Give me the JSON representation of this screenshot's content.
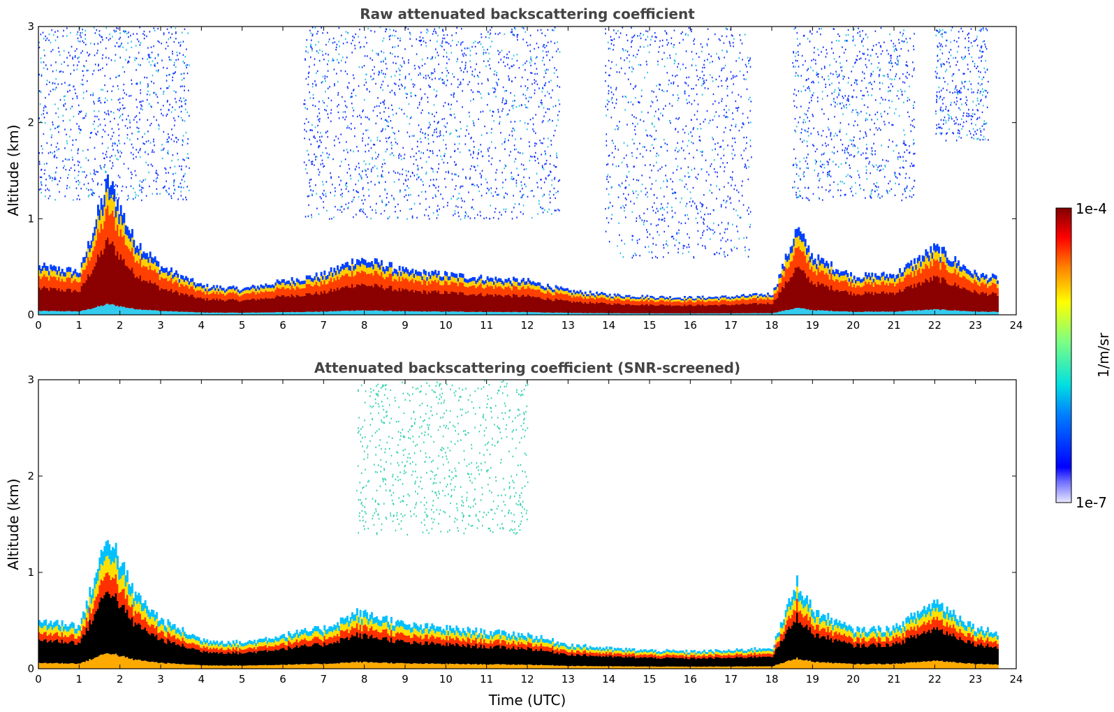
{
  "chart_data": [
    {
      "type": "heatmap",
      "title": "Raw attenuated backscattering coefficient",
      "xlabel": "",
      "ylabel": "Altitude (km)",
      "xlim": [
        0,
        24
      ],
      "ylim": [
        0,
        3
      ],
      "x_ticks": [
        "0",
        "1",
        "2",
        "3",
        "4",
        "5",
        "6",
        "7",
        "8",
        "9",
        "10",
        "11",
        "12",
        "13",
        "14",
        "15",
        "16",
        "17",
        "18",
        "19",
        "20",
        "21",
        "22",
        "23",
        "24"
      ],
      "y_ticks": [
        "0",
        "1",
        "2",
        "3"
      ],
      "data_end_time": 23.55,
      "boundary_layer_top_km": [
        [
          0,
          0.5
        ],
        [
          1,
          0.45
        ],
        [
          1.7,
          1.4
        ],
        [
          2.3,
          0.8
        ],
        [
          3,
          0.5
        ],
        [
          4,
          0.3
        ],
        [
          5,
          0.27
        ],
        [
          6,
          0.35
        ],
        [
          7,
          0.42
        ],
        [
          7.8,
          0.58
        ],
        [
          8.5,
          0.52
        ],
        [
          9,
          0.45
        ],
        [
          10,
          0.42
        ],
        [
          11,
          0.38
        ],
        [
          12,
          0.35
        ],
        [
          13,
          0.25
        ],
        [
          14,
          0.21
        ],
        [
          15,
          0.19
        ],
        [
          16,
          0.18
        ],
        [
          17,
          0.19
        ],
        [
          18,
          0.22
        ],
        [
          18.6,
          0.9
        ],
        [
          19,
          0.6
        ],
        [
          20,
          0.4
        ],
        [
          21,
          0.42
        ],
        [
          22,
          0.7
        ],
        [
          23,
          0.42
        ],
        [
          23.55,
          0.38
        ]
      ],
      "noise_regions": [
        {
          "start": 0,
          "end": 3.7,
          "min_alt_km": 1.2
        },
        {
          "start": 6.5,
          "end": 12.8,
          "min_alt_km": 1.0
        },
        {
          "start": 13.9,
          "end": 17.5,
          "min_alt_km": 0.6
        },
        {
          "start": 18.5,
          "end": 21.5,
          "min_alt_km": 1.2
        },
        {
          "start": 22,
          "end": 23.3,
          "min_alt_km": 1.8
        }
      ]
    },
    {
      "type": "heatmap",
      "title": "Attenuated backscattering coefficient (SNR-screened)",
      "xlabel": "Time (UTC)",
      "ylabel": "Altitude (km)",
      "xlim": [
        0,
        24
      ],
      "ylim": [
        0,
        3
      ],
      "x_ticks": [
        "0",
        "1",
        "2",
        "3",
        "4",
        "5",
        "6",
        "7",
        "8",
        "9",
        "10",
        "11",
        "12",
        "13",
        "14",
        "15",
        "16",
        "17",
        "18",
        "19",
        "20",
        "21",
        "22",
        "23",
        "24"
      ],
      "y_ticks": [
        "0",
        "1",
        "2",
        "3"
      ],
      "data_end_time": 23.55,
      "noise_regions": [
        {
          "start": 7.8,
          "end": 12.0,
          "min_alt_km": 1.4
        }
      ]
    }
  ],
  "colorbar": {
    "label": "1/m/sr",
    "min_label": "1e-7",
    "max_label": "1e-4",
    "scale": "log",
    "colormap": "jet"
  }
}
